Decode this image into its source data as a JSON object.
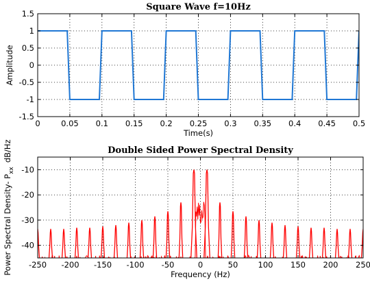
{
  "chart_data": [
    {
      "type": "line",
      "title": "Square Wave f=10Hz",
      "xlabel": "Time(s)",
      "ylabel": "Amplitude",
      "xlim": [
        0,
        0.5
      ],
      "ylim": [
        -1.5,
        1.5
      ],
      "xticks": [
        0,
        0.05,
        0.1,
        0.15,
        0.2,
        0.25,
        0.3,
        0.35,
        0.4,
        0.45,
        0.5
      ],
      "xtick_labels": [
        "0",
        "0.05",
        "0.1",
        "0.15",
        "0.2",
        "0.25",
        "0.3",
        "0.35",
        "0.4",
        "0.45",
        "0.5"
      ],
      "yticks": [
        -1.5,
        -1,
        -0.5,
        0,
        0.5,
        1,
        1.5
      ],
      "ytick_labels": [
        "-1.5",
        "-1",
        "-0.5",
        "0",
        "0.5",
        "1",
        "1.5"
      ],
      "grid": true,
      "color": "#1f77d4",
      "series": [
        {
          "x": [
            0,
            0.046,
            0.05,
            0.096,
            0.1,
            0.146,
            0.15,
            0.196,
            0.2,
            0.246,
            0.25,
            0.296,
            0.3,
            0.346,
            0.35,
            0.396,
            0.4,
            0.446,
            0.45,
            0.496,
            0.5
          ],
          "values": [
            1,
            1,
            -1,
            -1,
            1,
            1,
            -1,
            -1,
            1,
            1,
            -1,
            -1,
            1,
            1,
            -1,
            -1,
            1,
            1,
            -1,
            -1,
            1
          ]
        }
      ]
    },
    {
      "type": "line",
      "title": "Double Sided Power Spectral Density",
      "xlabel": "Frequency (Hz)",
      "ylabel": "Power Spectral Density- P",
      "ylabel_subscript": "xx",
      "ylabel_unit": "dB/Hz",
      "xlim": [
        -250,
        250
      ],
      "ylim": [
        -45,
        -5
      ],
      "xticks": [
        -250,
        -200,
        -150,
        -100,
        -50,
        0,
        50,
        100,
        150,
        200,
        250
      ],
      "xtick_labels": [
        "-250",
        "-200",
        "-150",
        "-100",
        "-50",
        "0",
        "50",
        "100",
        "150",
        "200",
        "250"
      ],
      "yticks": [
        -40,
        -30,
        -20,
        -10
      ],
      "ytick_labels": [
        "-40",
        "-30",
        "-20",
        "-10"
      ],
      "grid": true,
      "color": "#ff0000",
      "series": [
        {
          "x": [
            -250,
            -230,
            -210,
            -190,
            -170,
            -150,
            -130,
            -110,
            -90,
            -70,
            -50,
            -30,
            -10,
            10,
            30,
            50,
            70,
            90,
            110,
            130,
            150,
            170,
            190,
            210,
            230,
            250
          ],
          "values": [
            -33.5,
            -33.5,
            -33.5,
            -33,
            -33,
            -32.5,
            -32,
            -31,
            -30,
            -28.5,
            -26.5,
            -23,
            -10,
            -10,
            -23,
            -26.5,
            -28.5,
            -30,
            -31,
            -32,
            -32.5,
            -33,
            -33,
            -33.5,
            -33.5,
            -33.5
          ]
        }
      ]
    }
  ]
}
